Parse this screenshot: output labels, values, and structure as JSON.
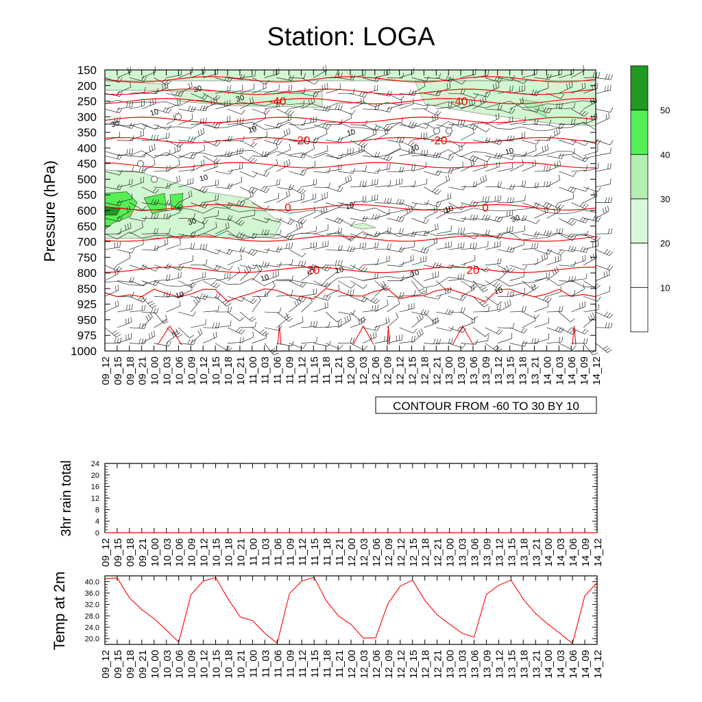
{
  "title": "Station: LOGA",
  "time_labels": [
    "09_12",
    "09_15",
    "09_18",
    "09_21",
    "10_00",
    "10_03",
    "10_06",
    "10_09",
    "10_12",
    "10_15",
    "10_18",
    "10_21",
    "11_00",
    "11_03",
    "11_06",
    "11_09",
    "11_12",
    "11_15",
    "11_18",
    "11_21",
    "12_00",
    "12_03",
    "12_06",
    "12_09",
    "12_12",
    "12_15",
    "12_18",
    "12_21",
    "13_00",
    "13_03",
    "13_06",
    "13_09",
    "13_12",
    "13_15",
    "13_18",
    "13_21",
    "14_00",
    "14_03",
    "14_06",
    "14_09",
    "14_12"
  ],
  "chart_data": [
    {
      "type": "heatmap",
      "ylabel": "Pressure (hPa)",
      "pressure_levels": [
        150,
        200,
        250,
        300,
        350,
        400,
        450,
        500,
        550,
        600,
        650,
        700,
        750,
        800,
        850,
        925,
        950,
        975,
        1000
      ],
      "y_direction": "reversed (150 top, 1000 bottom)",
      "contour_info": "CONTOUR FROM -60 TO 30 BY 10",
      "temperature_contours": [
        {
          "label": "-40",
          "pressure": 250
        },
        {
          "label": "-20",
          "pressure": 375
        },
        {
          "label": "0",
          "pressure": 590
        },
        {
          "label": "20",
          "pressure": 790
        }
      ],
      "shading_labels": [
        "30",
        "10",
        "30",
        "10",
        "10",
        "30",
        "10",
        "10",
        "10",
        "10",
        "10",
        "30",
        "10",
        "10",
        "10",
        "10",
        "10",
        "30"
      ],
      "colorbar": {
        "levels": [
          10,
          20,
          30,
          40,
          50
        ],
        "colors": [
          "#ffffff",
          "#ffffff",
          "#d9f7d9",
          "#b3eeb3",
          "#55ee55",
          "#229922"
        ]
      },
      "barbs": "wind barbs at every time step and pressure level"
    },
    {
      "type": "line",
      "ylabel": "3hr rain total",
      "yticks": [
        0,
        4,
        8,
        12,
        16,
        20,
        24
      ],
      "ylim": [
        0,
        24
      ],
      "values": [
        0,
        0,
        0,
        0,
        0,
        0,
        0,
        0,
        0,
        0,
        0,
        0,
        0,
        0,
        0,
        0,
        0,
        0,
        0,
        0,
        0,
        0,
        0,
        0,
        0,
        0,
        0,
        0,
        0,
        0,
        0,
        0,
        0,
        0,
        0,
        0,
        0,
        0,
        0,
        0,
        0
      ]
    },
    {
      "type": "line",
      "ylabel": "Temp at 2m",
      "yticks": [
        "20.0",
        "24.0",
        "28.0",
        "32.0",
        "36.0",
        "40.0"
      ],
      "ylim": [
        18,
        42
      ],
      "color": "#ff0000",
      "values": [
        41.0,
        41.3,
        34.3,
        30.2,
        27.0,
        23.0,
        18.8,
        35.4,
        40.2,
        41.4,
        34.0,
        27.6,
        26.3,
        21.9,
        18.4,
        35.8,
        40.2,
        41.5,
        33.2,
        27.9,
        25.0,
        20.2,
        20.3,
        32.3,
        38.4,
        40.5,
        33.4,
        28.4,
        25.1,
        22.0,
        20.5,
        35.5,
        38.7,
        40.5,
        33.8,
        28.8,
        25.1,
        21.8,
        18.3,
        35.0,
        39.6
      ]
    }
  ]
}
